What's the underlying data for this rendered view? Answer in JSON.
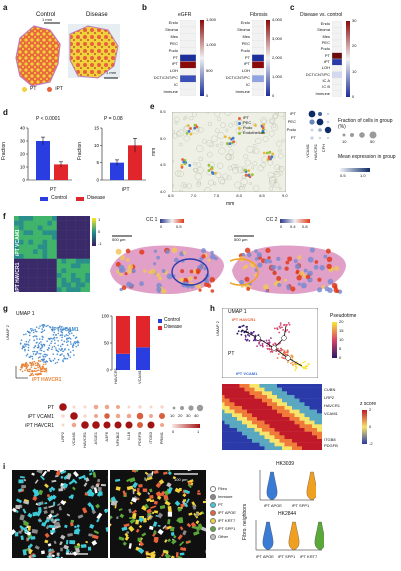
{
  "panels": {
    "a": {
      "letter": "a",
      "left_title": "Control",
      "right_title": "Disease",
      "scale1": "1 mm",
      "scale2": "1 mm",
      "legend": [
        {
          "label": "PT",
          "color": "#f0d23c"
        },
        {
          "label": "iPT",
          "color": "#e8613a"
        }
      ]
    },
    "b": {
      "letter": "b",
      "left_title": "eGFR",
      "right_title": "Fibrosis",
      "rows": [
        "Endo",
        "Stroma",
        "Mes",
        "PEC",
        "Podo",
        "PT",
        "iPT",
        "LOH",
        "DCT/CNT/PC",
        "IC",
        "Immune"
      ],
      "left_ticks": [
        "1,500",
        "1,000",
        "500",
        "0"
      ],
      "right_ticks": [
        "4,000",
        "3,000",
        "2,000",
        "1,000",
        "0"
      ]
    },
    "c": {
      "letter": "c",
      "title": "Disease vs. control",
      "rows": [
        "Endo",
        "Stroma",
        "Mes",
        "PEC",
        "Podo",
        "PT",
        "iPT",
        "LOH",
        "DCT/CNT/PC",
        "IC A",
        "IC B",
        "Immune"
      ],
      "ticks": [
        "30",
        "20",
        "10",
        "0"
      ]
    },
    "d": {
      "letter": "d",
      "ylabel": "Fraction",
      "charts": [
        {
          "p": "P < 0.0001",
          "xlabel": "PT",
          "yticks": [
            "0",
            "10",
            "20",
            "30",
            "40"
          ]
        },
        {
          "p": "P = 0.08",
          "xlabel": "iPT",
          "yticks": [
            "0",
            "5",
            "10",
            "15"
          ]
        }
      ],
      "legend": [
        {
          "label": "Control",
          "color": "#2a3de0"
        },
        {
          "label": "Disease",
          "color": "#e0262b"
        }
      ]
    },
    "e": {
      "letter": "e",
      "ylabel": "mm",
      "xlabel": "mm",
      "xticks": [
        "6.5",
        "7.0",
        "7.5",
        "8.0",
        "8.5",
        "9.0"
      ],
      "yticks": [
        "5.5",
        "5.0",
        "4.5",
        "4.0"
      ],
      "legend": [
        {
          "label": "iPT",
          "color": "#e8613a"
        },
        {
          "label": "PEC",
          "color": "#3a7bd5"
        },
        {
          "label": "Podo",
          "color": "#e8b93a"
        },
        {
          "label": "Endothelium",
          "color": "#9bc23a"
        }
      ],
      "dot_rows": [
        "iPT",
        "PEC",
        "Podo",
        "PT"
      ],
      "dot_cols": [
        "VCAM1",
        "HAVCR1",
        "CFH"
      ],
      "frac_title": "Fraction of cells in group (%)",
      "frac_ticks": [
        "10",
        "50"
      ],
      "mean_title": "Mean expression in group",
      "mean_ticks": [
        "0.5",
        "1.0"
      ]
    },
    "f": {
      "letter": "f",
      "row_label_top": "iPT VCAM1",
      "row_label_bottom": "iPT HAVCR1",
      "cbar_ticks": [
        "1",
        "0",
        "-1"
      ],
      "cc1": {
        "title": "CC 1",
        "ticks": [
          "0",
          "0.5"
        ],
        "scale": "500 µm"
      },
      "cc2": {
        "title": "CC 2",
        "ticks": [
          "0",
          "0.4",
          "0.8"
        ],
        "scale": "500 µm"
      }
    },
    "g": {
      "letter": "g",
      "umap_label": "UMAP 1",
      "umap_y": "UMAP 2",
      "cluster_top": "iPT VCAM1",
      "cluster_bottom": "iPT HAVCR1",
      "bar_cats": [
        "HAVCR1",
        "VCAM1"
      ],
      "bar_control": [
        30,
        42
      ],
      "bar_disease": [
        70,
        58
      ],
      "bar_yticks": [
        "0",
        "50",
        "100"
      ],
      "legend": [
        {
          "label": "Control",
          "color": "#2a3de0"
        },
        {
          "label": "Disease",
          "color": "#e0262b"
        }
      ],
      "dot_rows": [
        "PT",
        "iPT VCAM1",
        "iPT HAVCR1"
      ],
      "dot_cols": [
        "LRP2",
        "VCAM1",
        "HAVCR1",
        "AS1E1",
        "A3F6",
        "NFKBIZ",
        "IL18",
        "PDGFB",
        "ITGB3",
        "PRIM1"
      ],
      "size_ticks": [
        "10",
        "20",
        "30",
        "40"
      ],
      "cbar_ticks": [
        "0",
        "1"
      ]
    },
    "h": {
      "letter": "h",
      "umap_x": "UMAP 1",
      "umap_y": "UMAP 2",
      "label_top": "iPT HAVCR1",
      "label_bl": "PT",
      "label_bottom": "iPT VCAM1",
      "pseudo_title": "Pseudotime",
      "pseudo_ticks": [
        "20",
        "15",
        "10",
        "5",
        "0"
      ],
      "genes": [
        "CUBN",
        "LRP2",
        "HAVCR1",
        "VCAM1",
        "ITGB8",
        "PDGFB"
      ],
      "z_title": "z score",
      "z_ticks": [
        "2",
        "0",
        "-2"
      ]
    },
    "i": {
      "letter": "i",
      "scale1": "100 µm",
      "scale2": "100 µm",
      "legend": [
        {
          "label": "Fibro",
          "color": "#ffffff"
        },
        {
          "label": "Immune",
          "color": "#8a8a8a"
        },
        {
          "label": "PT",
          "color": "#3ecbd8"
        },
        {
          "label": "iPT APOE",
          "color": "#e8613a"
        },
        {
          "label": "iPT KRT7",
          "color": "#f0d23c"
        },
        {
          "label": "iPT SPP1",
          "color": "#5aa83a"
        },
        {
          "label": "Other",
          "color": "#bfbfbf"
        }
      ],
      "violin_top": {
        "title": "HK3039",
        "cats": [
          "iPT APOE",
          "iPT SPP1"
        ]
      },
      "violin_bottom": {
        "title": "HK2844",
        "cats": [
          "iPT APOE",
          "iPT SPP1",
          "iPT KRT7"
        ]
      },
      "violin_ylabel": "Fibro. neighbors"
    }
  },
  "chart_data": [
    {
      "type": "bar",
      "panel": "d",
      "title": "",
      "xlabel": "PT",
      "ylabel": "Fraction",
      "ylim": [
        0,
        40
      ],
      "categories": [
        "PT"
      ],
      "series": [
        {
          "name": "Control",
          "values": [
            30
          ]
        },
        {
          "name": "Disease",
          "values": [
            12
          ]
        }
      ],
      "errors": [
        {
          "name": "Control",
          "values": [
            3
          ]
        },
        {
          "name": "Disease",
          "values": [
            2
          ]
        }
      ]
    },
    {
      "type": "bar",
      "panel": "d",
      "title": "",
      "xlabel": "iPT",
      "ylabel": "Fraction",
      "ylim": [
        0,
        15
      ],
      "categories": [
        "iPT"
      ],
      "series": [
        {
          "name": "Control",
          "values": [
            5
          ]
        },
        {
          "name": "Disease",
          "values": [
            10
          ]
        }
      ],
      "errors": [
        {
          "name": "Control",
          "values": [
            0.8
          ]
        },
        {
          "name": "Disease",
          "values": [
            2
          ]
        }
      ]
    },
    {
      "type": "bar",
      "panel": "g",
      "stacked": true,
      "categories": [
        "HAVCR1",
        "VCAM1"
      ],
      "ylim": [
        0,
        100
      ],
      "series": [
        {
          "name": "Control",
          "values": [
            30,
            42
          ]
        },
        {
          "name": "Disease",
          "values": [
            70,
            58
          ]
        }
      ]
    }
  ]
}
